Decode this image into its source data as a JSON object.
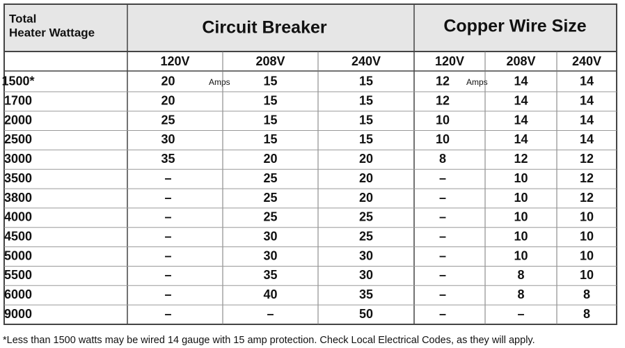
{
  "header": {
    "corner_title": [
      "Total",
      "Heater Wattage"
    ],
    "circuit_breaker": "Circuit Breaker",
    "copper_wire_size": "Copper Wire Size"
  },
  "subheader": [
    "120V",
    "208V",
    "240V",
    "120V",
    "208V",
    "240V"
  ],
  "units": {
    "circuit_breaker": "Amps",
    "copper_wire_size": "Amps"
  },
  "table": {
    "rows": [
      [
        "1500*",
        "20",
        "15",
        "15",
        "12",
        "14",
        "14"
      ],
      [
        "1700",
        "20",
        "15",
        "15",
        "12",
        "14",
        "14"
      ],
      [
        "2000",
        "25",
        "15",
        "15",
        "10",
        "14",
        "14"
      ],
      [
        "2500",
        "30",
        "15",
        "15",
        "10",
        "14",
        "14"
      ],
      [
        "3000",
        "35",
        "20",
        "20",
        "8",
        "12",
        "12"
      ],
      [
        "3500",
        "–",
        "25",
        "20",
        "–",
        "10",
        "12"
      ],
      [
        "3800",
        "–",
        "25",
        "20",
        "–",
        "10",
        "12"
      ],
      [
        "4000",
        "–",
        "25",
        "25",
        "–",
        "10",
        "10"
      ],
      [
        "4500",
        "–",
        "30",
        "25",
        "–",
        "10",
        "10"
      ],
      [
        "5000",
        "–",
        "30",
        "30",
        "–",
        "10",
        "10"
      ],
      [
        "5500",
        "–",
        "35",
        "30",
        "–",
        "8",
        "10"
      ],
      [
        "6000",
        "–",
        "40",
        "35",
        "–",
        "8",
        "8"
      ],
      [
        "9000",
        "–",
        "–",
        "50",
        "–",
        "–",
        "8"
      ]
    ]
  },
  "footnote": "*Less than 1500 watts may be wired 14 gauge with 15 amp protection. Check Local Electrical Codes, as they will apply."
}
